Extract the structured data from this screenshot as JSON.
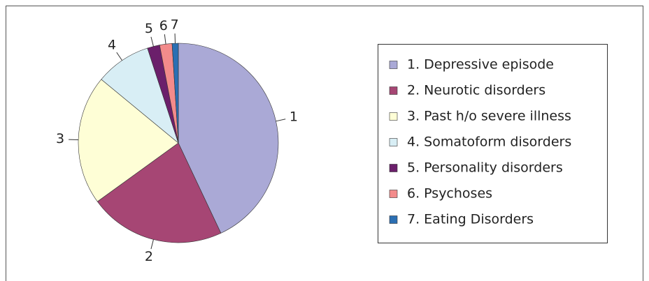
{
  "chart_data": {
    "type": "pie",
    "labels": [
      "1",
      "2",
      "3",
      "4",
      "5",
      "6",
      "7"
    ],
    "categories": [
      "1. Depressive episode",
      "2. Neurotic disorders",
      "3. Past h/o severe illness",
      "4. Somatoform disorders",
      "5. Personality disorders",
      "6. Psychoses",
      "7. Eating Disorders"
    ],
    "values": [
      43,
      22,
      21,
      9,
      2,
      2,
      1
    ],
    "colors": [
      "#aaa9d6",
      "#a64674",
      "#fefed6",
      "#d8eef5",
      "#6b1f6b",
      "#f38b8b",
      "#2b6fb3"
    ]
  }
}
